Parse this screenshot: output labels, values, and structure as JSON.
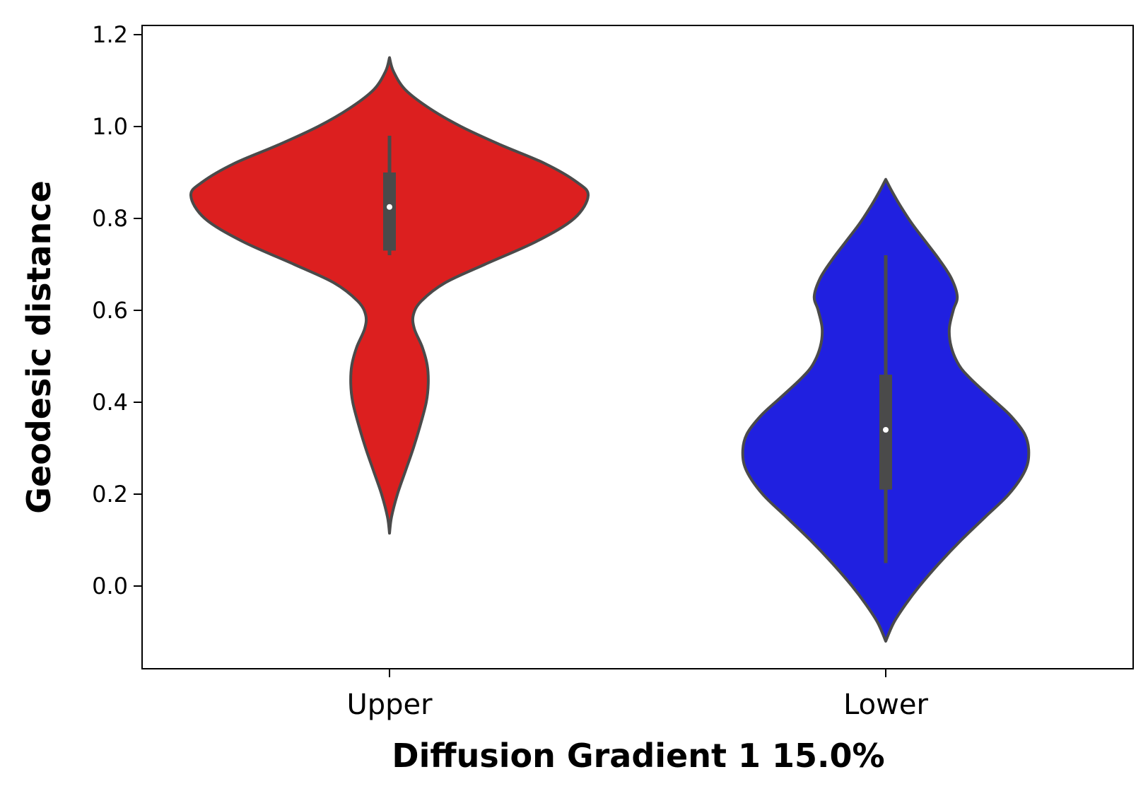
{
  "chart_data": {
    "type": "violin",
    "categories": [
      "Upper",
      "Lower"
    ],
    "xlabel": "Diffusion Gradient 1 15.0%",
    "ylabel": "Geodesic distance",
    "ylim": [
      -0.18,
      1.22
    ],
    "yticks": [
      0.0,
      0.2,
      0.4,
      0.6,
      0.8,
      1.0,
      1.2
    ],
    "ytick_labels": [
      "0.0",
      "0.2",
      "0.4",
      "0.6",
      "0.8",
      "1.0",
      "1.2"
    ],
    "grid": false,
    "legend": "none",
    "series": [
      {
        "category": "Upper",
        "color": "#dc1f1f",
        "box": {
          "whisker_low": 0.72,
          "q1": 0.73,
          "median": 0.825,
          "q3": 0.9,
          "whisker_high": 0.98
        },
        "density_range": [
          0.115,
          1.15
        ],
        "density_profile": [
          [
            0.115,
            0.0
          ],
          [
            0.15,
            0.01
          ],
          [
            0.2,
            0.04
          ],
          [
            0.25,
            0.08
          ],
          [
            0.3,
            0.12
          ],
          [
            0.35,
            0.155
          ],
          [
            0.4,
            0.185
          ],
          [
            0.44,
            0.195
          ],
          [
            0.48,
            0.19
          ],
          [
            0.52,
            0.165
          ],
          [
            0.56,
            0.125
          ],
          [
            0.59,
            0.12
          ],
          [
            0.62,
            0.16
          ],
          [
            0.66,
            0.28
          ],
          [
            0.7,
            0.48
          ],
          [
            0.75,
            0.74
          ],
          [
            0.8,
            0.93
          ],
          [
            0.85,
            1.0
          ],
          [
            0.88,
            0.94
          ],
          [
            0.92,
            0.78
          ],
          [
            0.96,
            0.56
          ],
          [
            1.0,
            0.36
          ],
          [
            1.04,
            0.2
          ],
          [
            1.08,
            0.08
          ],
          [
            1.12,
            0.02
          ],
          [
            1.15,
            0.0
          ]
        ]
      },
      {
        "category": "Lower",
        "color": "#2020e0",
        "box": {
          "whisker_low": 0.05,
          "q1": 0.21,
          "median": 0.34,
          "q3": 0.46,
          "whisker_high": 0.72
        },
        "density_range": [
          -0.12,
          0.885
        ],
        "density_profile": [
          [
            -0.12,
            0.0
          ],
          [
            -0.08,
            0.04
          ],
          [
            -0.04,
            0.1
          ],
          [
            0.0,
            0.17
          ],
          [
            0.05,
            0.27
          ],
          [
            0.1,
            0.38
          ],
          [
            0.15,
            0.5
          ],
          [
            0.2,
            0.62
          ],
          [
            0.25,
            0.7
          ],
          [
            0.29,
            0.72
          ],
          [
            0.33,
            0.7
          ],
          [
            0.37,
            0.63
          ],
          [
            0.41,
            0.53
          ],
          [
            0.45,
            0.43
          ],
          [
            0.48,
            0.37
          ],
          [
            0.52,
            0.33
          ],
          [
            0.56,
            0.32
          ],
          [
            0.6,
            0.34
          ],
          [
            0.63,
            0.36
          ],
          [
            0.67,
            0.33
          ],
          [
            0.71,
            0.27
          ],
          [
            0.75,
            0.2
          ],
          [
            0.79,
            0.13
          ],
          [
            0.83,
            0.07
          ],
          [
            0.86,
            0.03
          ],
          [
            0.885,
            0.0
          ]
        ]
      }
    ]
  }
}
